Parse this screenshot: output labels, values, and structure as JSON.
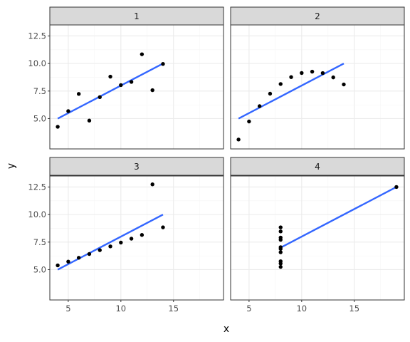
{
  "chart_data": {
    "type": "scatter",
    "xlabel": "x",
    "ylabel": "y",
    "xlim": [
      3.25,
      19.75
    ],
    "ylim": [
      2.25,
      13.5
    ],
    "x_ticks": [
      5,
      10,
      15
    ],
    "x_tick_labels": [
      "5",
      "10",
      "15"
    ],
    "y_ticks": [
      5,
      7.5,
      10,
      12.5
    ],
    "y_tick_labels": [
      "5.0",
      "7.5",
      "10.0",
      "12.5"
    ],
    "grid": true,
    "colors": {
      "point": "#000000",
      "fit_line": "#3366ff",
      "strip_bg": "#d9d9d9",
      "grid_major": "#ebebeb",
      "grid_minor": "#f5f5f5",
      "border": "#333333"
    },
    "panels": [
      {
        "label": "1",
        "x": [
          10,
          8,
          13,
          9,
          11,
          14,
          6,
          4,
          12,
          7,
          5
        ],
        "y": [
          8.04,
          6.95,
          7.58,
          8.81,
          8.33,
          9.96,
          7.24,
          4.26,
          10.84,
          4.82,
          5.68
        ],
        "fit": {
          "intercept": 3.0,
          "slope": 0.5,
          "x_range": [
            4,
            14
          ]
        }
      },
      {
        "label": "2",
        "x": [
          10,
          8,
          13,
          9,
          11,
          14,
          6,
          4,
          12,
          7,
          5
        ],
        "y": [
          9.14,
          8.14,
          8.74,
          8.77,
          9.26,
          8.1,
          6.13,
          3.1,
          9.13,
          7.26,
          4.74
        ],
        "fit": {
          "intercept": 3.0,
          "slope": 0.5,
          "x_range": [
            4,
            14
          ]
        }
      },
      {
        "label": "3",
        "x": [
          10,
          8,
          13,
          9,
          11,
          14,
          6,
          4,
          12,
          7,
          5
        ],
        "y": [
          7.46,
          6.77,
          12.74,
          7.11,
          7.81,
          8.84,
          6.08,
          5.39,
          8.15,
          6.42,
          5.73
        ],
        "fit": {
          "intercept": 3.0,
          "slope": 0.5,
          "x_range": [
            4,
            14
          ]
        }
      },
      {
        "label": "4",
        "x": [
          8,
          8,
          8,
          8,
          8,
          8,
          8,
          19,
          8,
          8,
          8
        ],
        "y": [
          6.58,
          5.76,
          7.71,
          8.84,
          8.47,
          7.04,
          5.25,
          12.5,
          5.56,
          7.91,
          6.89
        ],
        "fit": {
          "intercept": 3.0,
          "slope": 0.5,
          "x_range": [
            8,
            19
          ]
        }
      }
    ]
  }
}
